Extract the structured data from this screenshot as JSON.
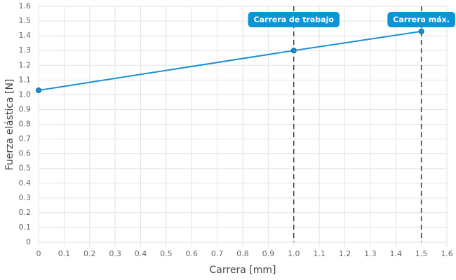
{
  "chart_data": {
    "type": "line",
    "xlabel": "Carrera [mm]",
    "ylabel": "Fuerza elástica [N]",
    "x": [
      0,
      1,
      1.5
    ],
    "series": [
      {
        "name": "Fuerza elástica",
        "color": "#1a8fd6",
        "values": [
          1.03,
          1.3,
          1.43
        ]
      }
    ],
    "xlim": [
      0,
      1.6
    ],
    "ylim": [
      0,
      1.6
    ],
    "xticks": [
      0,
      0.1,
      0.2,
      0.3,
      0.4,
      0.5,
      0.6,
      0.7,
      0.8,
      0.9,
      {
        "value": 1,
        "label": "1.0"
      },
      1.1,
      1.2,
      1.3,
      1.4,
      1.5,
      1.6
    ],
    "yticks": [
      0,
      0.1,
      0.2,
      0.3,
      0.4,
      0.5,
      0.6,
      0.7,
      0.8,
      0.9,
      {
        "value": 1,
        "label": "1.0"
      },
      1.1,
      1.2,
      1.3,
      1.4,
      1.5,
      1.6
    ],
    "grid": true,
    "annotations": [
      {
        "x": 1,
        "label": "Carrera de trabajo",
        "color": "#0b95d6"
      },
      {
        "x": 1.5,
        "label": "Carrera máx.",
        "color": "#0b95d6"
      }
    ]
  }
}
